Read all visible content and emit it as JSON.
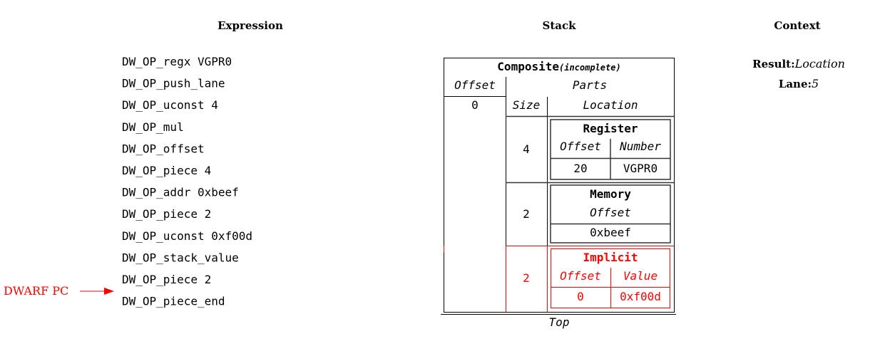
{
  "columns": {
    "expression": "Expression",
    "stack": "Stack",
    "context": "Context"
  },
  "expression": [
    "DW_OP_regx VGPR0",
    "DW_OP_push_lane",
    "DW_OP_uconst 4",
    "DW_OP_mul",
    "DW_OP_offset",
    "DW_OP_piece 4",
    "DW_OP_addr 0xbeef",
    "DW_OP_piece 2",
    "DW_OP_uconst 0xf00d",
    "DW_OP_stack_value",
    "DW_OP_piece 2",
    "DW_OP_piece_end"
  ],
  "pc": {
    "label": "DWARF PC",
    "current_index": 11,
    "color": "#ff0000"
  },
  "stack": {
    "composite": {
      "title": "Composite",
      "status": "(incomplete)",
      "offset_header": "Offset",
      "offset": "0",
      "parts_header": "Parts",
      "size_header": "Size",
      "location_header": "Location"
    },
    "parts": [
      {
        "size": "4",
        "kind": "Register",
        "col1": "Offset",
        "col2": "Number",
        "val1": "20",
        "val2": "VGPR0"
      },
      {
        "size": "2",
        "kind": "Memory",
        "col1": "Offset",
        "val1": "0xbeef"
      },
      {
        "size": "2",
        "kind": "Implicit",
        "col1": "Offset",
        "col2": "Value",
        "val1": "0",
        "val2": "0xf00d",
        "highlight": "#ff0000"
      }
    ],
    "top_label": "Top"
  },
  "context": {
    "result_label": "Result:",
    "result_value": "Location",
    "lane_label": "Lane:",
    "lane_value": "5"
  }
}
